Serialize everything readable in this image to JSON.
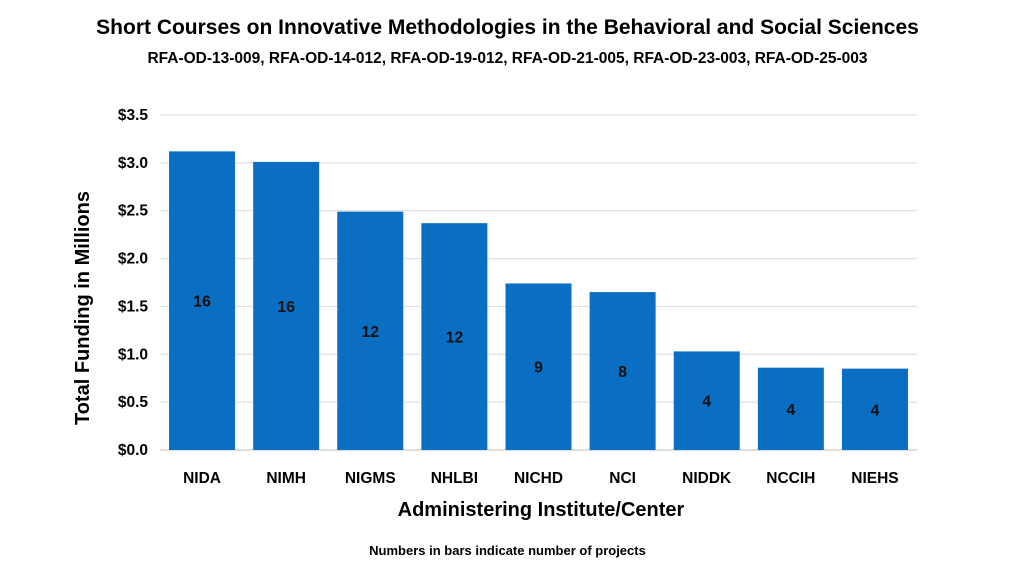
{
  "chart_data": {
    "type": "bar",
    "title": "Short Courses on Innovative Methodologies in the Behavioral and Social Sciences",
    "subtitle": "RFA-OD-13-009, RFA-OD-14-012, RFA-OD-19-012, RFA-OD-21-005, RFA-OD-23-003, RFA-OD-25-003",
    "xlabel": "Administering Institute/Center",
    "ylabel": "Total Funding in Millions",
    "categories": [
      "NIDA",
      "NIMH",
      "NIGMS",
      "NHLBI",
      "NICHD",
      "NCI",
      "NIDDK",
      "NCCIH",
      "NIEHS"
    ],
    "values": [
      3.12,
      3.01,
      2.49,
      2.37,
      1.74,
      1.65,
      1.03,
      0.86,
      0.85
    ],
    "bar_labels": [
      "16",
      "16",
      "12",
      "12",
      "9",
      "8",
      "4",
      "4",
      "4"
    ],
    "ylim": [
      0,
      3.5
    ],
    "yticks": [
      0,
      0.5,
      1.0,
      1.5,
      2.0,
      2.5,
      3.0,
      3.5
    ],
    "ytick_labels": [
      "$0.0",
      "$0.5",
      "$1.0",
      "$1.5",
      "$2.0",
      "$2.5",
      "$3.0",
      "$3.5"
    ],
    "grid": true,
    "bar_color": "#0A6FC2",
    "grid_color": "#D9D9D9",
    "footnote": "Numbers in bars indicate number of projects"
  }
}
